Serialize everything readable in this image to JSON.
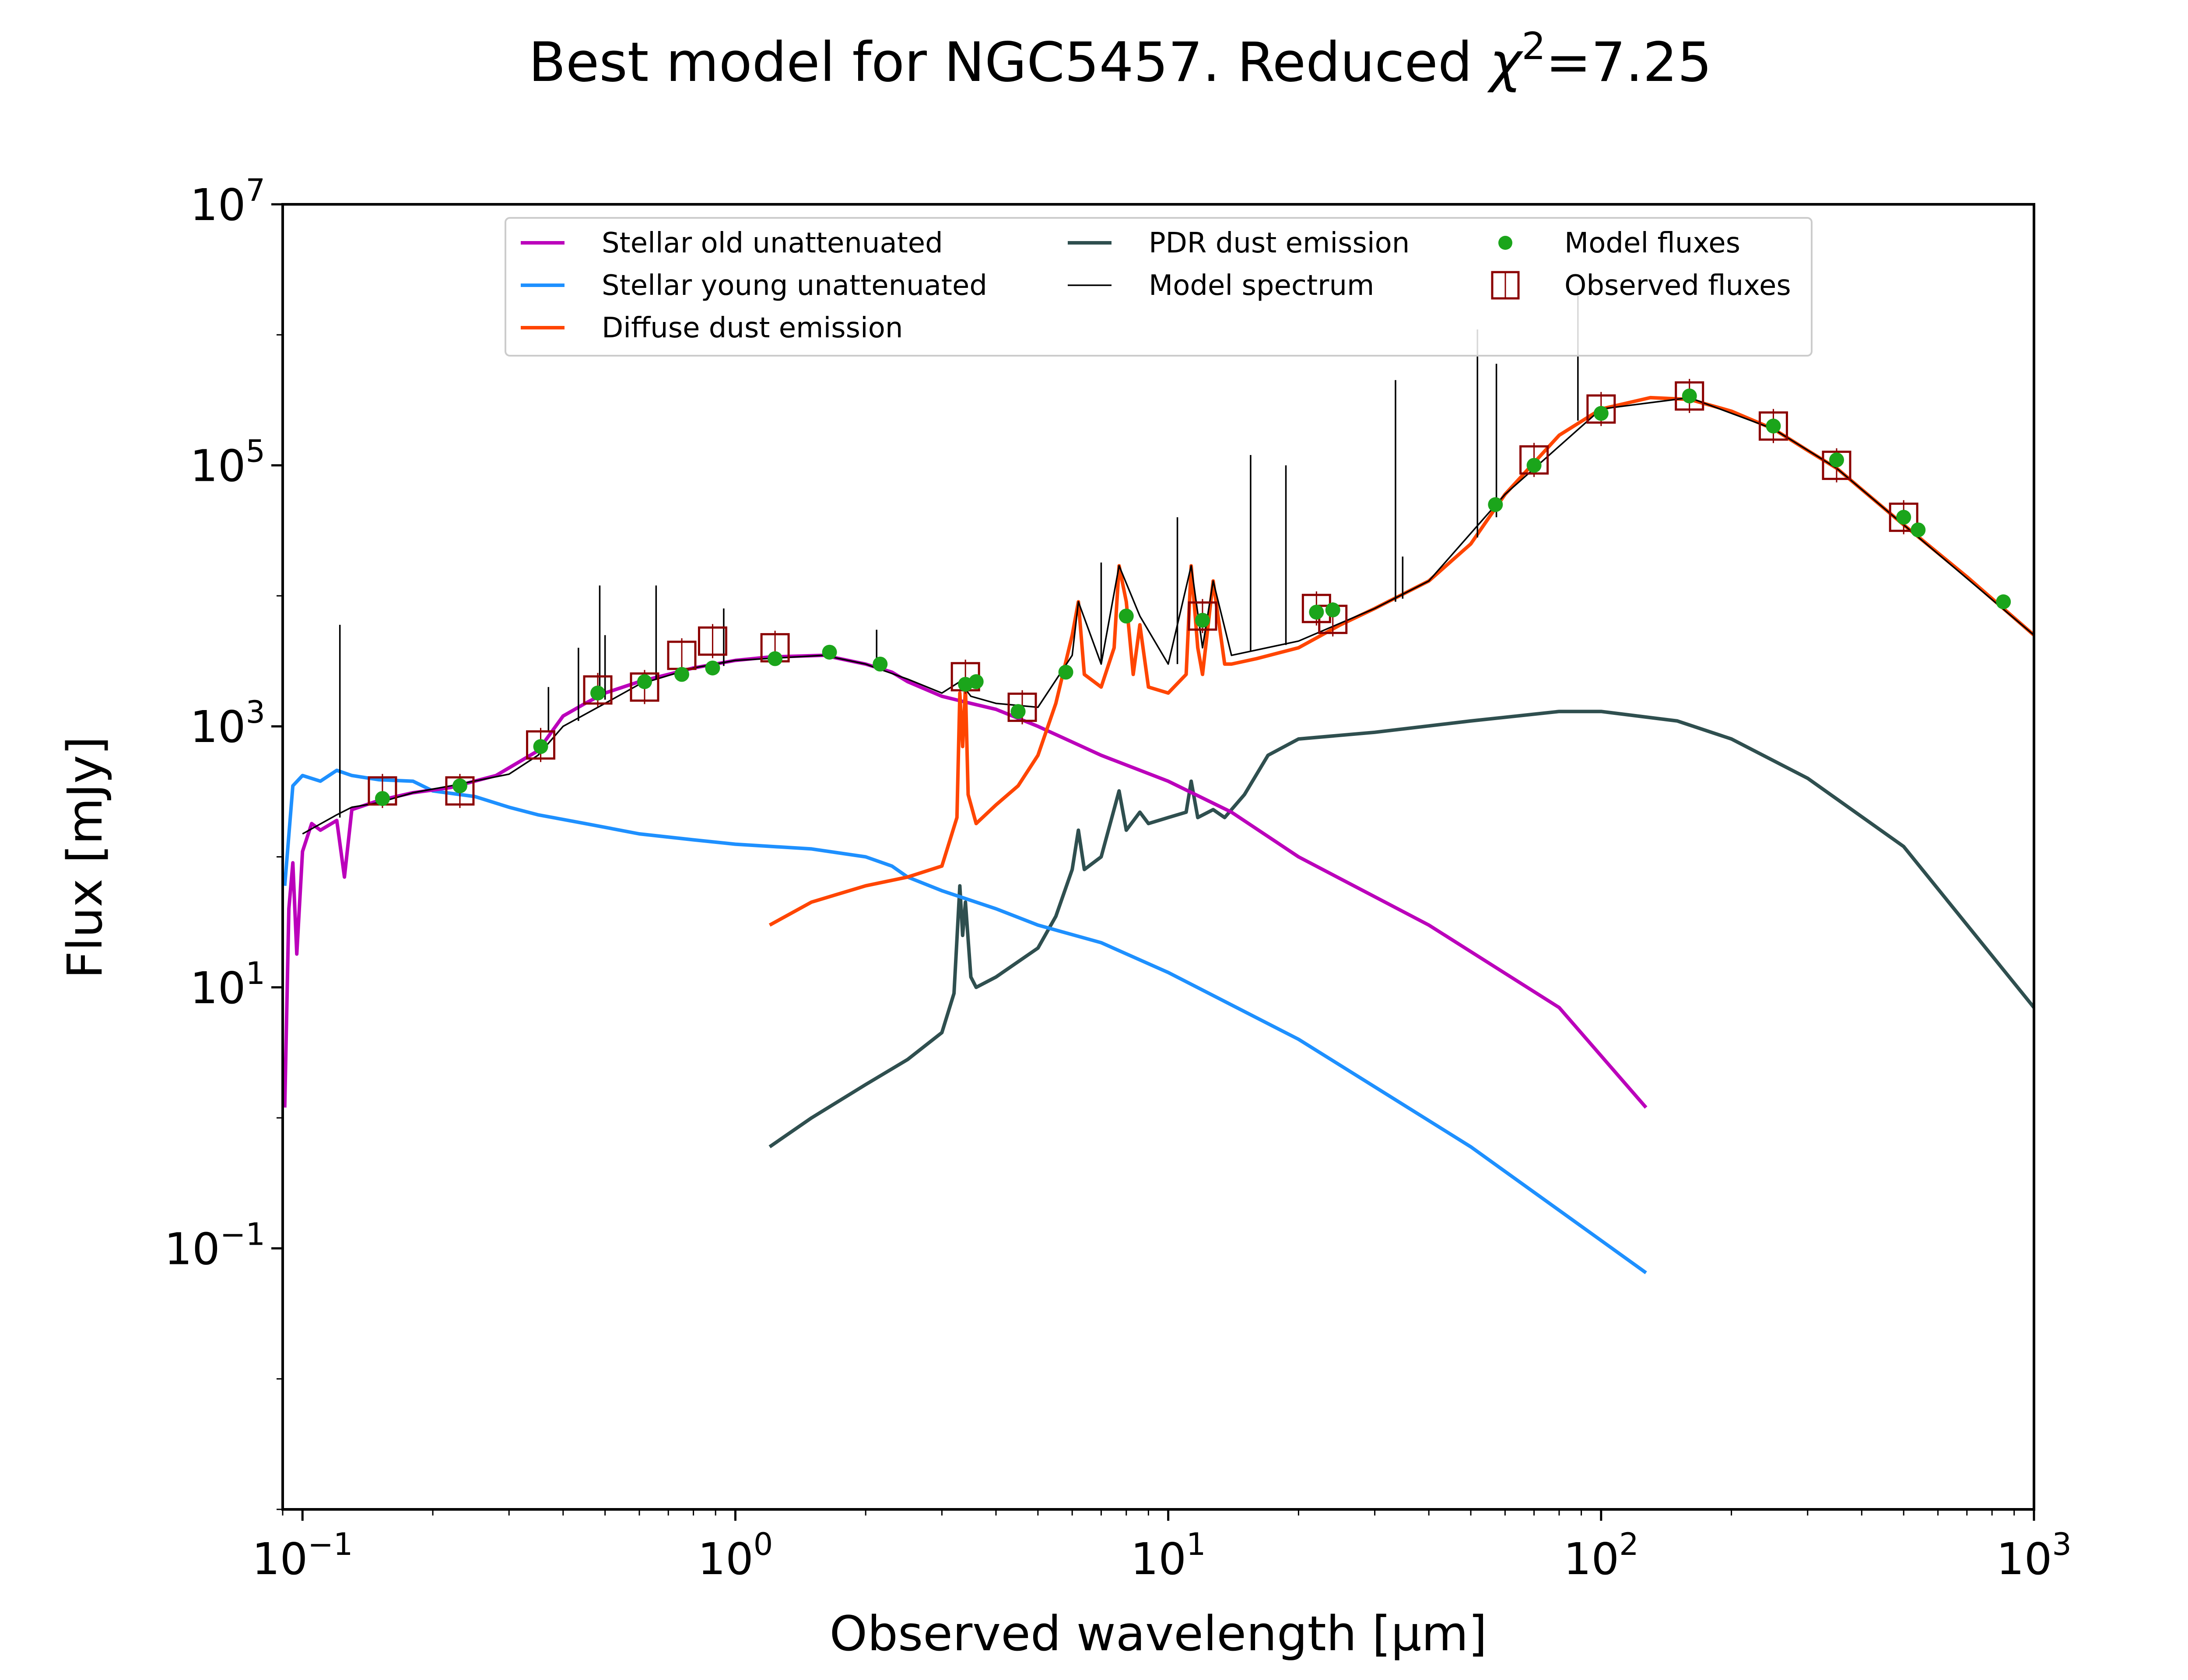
{
  "chart_data": {
    "type": "line",
    "title": "Best model for NGC5457. Reduced χ²=7.25",
    "title_parts": {
      "main": "Best model for NGC5457. Reduced ",
      "chi": "χ",
      "sup": "2",
      "tail": "=7.25"
    },
    "xlabel": "Observed wavelength [μm]",
    "ylabel": "Flux [mJy]",
    "xscale": "log",
    "yscale": "log",
    "xlim": [
      0.09,
      1000
    ],
    "ylim": [
      0.001,
      10000000
    ],
    "xticks": [
      {
        "base": "10",
        "exp": "−1",
        "value": 0.1
      },
      {
        "base": "10",
        "exp": "0",
        "value": 1
      },
      {
        "base": "10",
        "exp": "1",
        "value": 10
      },
      {
        "base": "10",
        "exp": "2",
        "value": 100
      },
      {
        "base": "10",
        "exp": "3",
        "value": 1000
      }
    ],
    "yticks": [
      {
        "base": "10",
        "exp": "−1",
        "value": 0.1
      },
      {
        "base": "10",
        "exp": "1",
        "value": 10
      },
      {
        "base": "10",
        "exp": "3",
        "value": 1000
      },
      {
        "base": "10",
        "exp": "5",
        "value": 100000
      },
      {
        "base": "10",
        "exp": "7",
        "value": 10000000
      }
    ],
    "grid": false,
    "legend_position": "top-center",
    "legend": [
      {
        "label": "Stellar old unattenuated",
        "kind": "line",
        "color": "#bb00bb"
      },
      {
        "label": "Stellar young unattenuated",
        "kind": "line",
        "color": "#1e90ff"
      },
      {
        "label": "Diffuse dust emission",
        "kind": "line",
        "color": "#ff4500"
      },
      {
        "label": "PDR dust emission",
        "kind": "line",
        "color": "#2f4f4f"
      },
      {
        "label": "Model spectrum",
        "kind": "thin-line",
        "color": "#000000"
      },
      {
        "label": "Model fluxes",
        "kind": "dot",
        "color": "#1ba51b"
      },
      {
        "label": "Observed fluxes",
        "kind": "square",
        "color": "#8b0000"
      }
    ],
    "series": [
      {
        "name": "Stellar old unattenuated",
        "color": "#bb00bb",
        "points": [
          [
            0.091,
            1.2
          ],
          [
            0.093,
            40
          ],
          [
            0.095,
            90
          ],
          [
            0.097,
            18
          ],
          [
            0.1,
            110
          ],
          [
            0.105,
            180
          ],
          [
            0.11,
            160
          ],
          [
            0.12,
            190
          ],
          [
            0.125,
            70
          ],
          [
            0.13,
            230
          ],
          [
            0.15,
            270
          ],
          [
            0.18,
            310
          ],
          [
            0.22,
            340
          ],
          [
            0.28,
            420
          ],
          [
            0.35,
            650
          ],
          [
            0.4,
            1200
          ],
          [
            0.45,
            1500
          ],
          [
            0.5,
            1800
          ],
          [
            0.6,
            2200
          ],
          [
            0.7,
            2500
          ],
          [
            0.8,
            2800
          ],
          [
            1.0,
            3200
          ],
          [
            1.2,
            3400
          ],
          [
            1.6,
            3500
          ],
          [
            2.0,
            3000
          ],
          [
            2.3,
            2600
          ],
          [
            2.5,
            2200
          ],
          [
            3.0,
            1700
          ],
          [
            3.5,
            1500
          ],
          [
            4.0,
            1350
          ],
          [
            5.0,
            1000
          ],
          [
            7.0,
            600
          ],
          [
            10.0,
            380
          ],
          [
            14.0,
            220
          ],
          [
            20.0,
            100
          ],
          [
            40.0,
            30
          ],
          [
            80.0,
            7
          ],
          [
            127,
            1.2
          ]
        ]
      },
      {
        "name": "Stellar young unattenuated",
        "color": "#1e90ff",
        "points": [
          [
            0.091,
            60
          ],
          [
            0.095,
            350
          ],
          [
            0.1,
            420
          ],
          [
            0.11,
            380
          ],
          [
            0.12,
            460
          ],
          [
            0.13,
            420
          ],
          [
            0.15,
            390
          ],
          [
            0.18,
            380
          ],
          [
            0.2,
            320
          ],
          [
            0.25,
            290
          ],
          [
            0.3,
            240
          ],
          [
            0.35,
            210
          ],
          [
            0.45,
            180
          ],
          [
            0.6,
            150
          ],
          [
            0.8,
            135
          ],
          [
            1.0,
            125
          ],
          [
            1.5,
            115
          ],
          [
            2.0,
            100
          ],
          [
            2.3,
            85
          ],
          [
            2.5,
            70
          ],
          [
            3.0,
            55
          ],
          [
            4.0,
            40
          ],
          [
            5.0,
            30
          ],
          [
            7.0,
            22
          ],
          [
            10.0,
            13
          ],
          [
            20.0,
            4
          ],
          [
            50.0,
            0.6
          ],
          [
            127,
            0.065
          ]
        ]
      },
      {
        "name": "Diffuse dust emission",
        "color": "#ff4500",
        "points": [
          [
            1.2,
            30
          ],
          [
            1.5,
            45
          ],
          [
            2.0,
            60
          ],
          [
            2.5,
            70
          ],
          [
            3.0,
            85
          ],
          [
            3.25,
            200
          ],
          [
            3.3,
            1800
          ],
          [
            3.35,
            700
          ],
          [
            3.4,
            2000
          ],
          [
            3.45,
            300
          ],
          [
            3.6,
            180
          ],
          [
            4.0,
            250
          ],
          [
            4.5,
            350
          ],
          [
            5.0,
            600
          ],
          [
            5.5,
            1500
          ],
          [
            6.0,
            5000
          ],
          [
            6.2,
            9000
          ],
          [
            6.4,
            2500
          ],
          [
            7.0,
            2000
          ],
          [
            7.5,
            4000
          ],
          [
            7.7,
            17000
          ],
          [
            8.0,
            9000
          ],
          [
            8.3,
            2500
          ],
          [
            8.6,
            6000
          ],
          [
            9.0,
            2000
          ],
          [
            10.0,
            1800
          ],
          [
            11.0,
            2500
          ],
          [
            11.3,
            17000
          ],
          [
            11.7,
            4000
          ],
          [
            12.0,
            2500
          ],
          [
            12.7,
            13000
          ],
          [
            13.5,
            3000
          ],
          [
            14.0,
            3000
          ],
          [
            16.0,
            3300
          ],
          [
            20.0,
            4000
          ],
          [
            25.0,
            6000
          ],
          [
            30.0,
            8000
          ],
          [
            40.0,
            13000
          ],
          [
            50.0,
            25000
          ],
          [
            60.0,
            60000
          ],
          [
            80.0,
            170000
          ],
          [
            100.0,
            270000
          ],
          [
            130.0,
            330000
          ],
          [
            160.0,
            320000
          ],
          [
            200.0,
            260000
          ],
          [
            250.0,
            190000
          ],
          [
            300.0,
            130000
          ],
          [
            350.0,
            95000
          ],
          [
            500.0,
            35000
          ],
          [
            700.0,
            14000
          ],
          [
            1000.0,
            5000
          ]
        ]
      },
      {
        "name": "PDR dust emission",
        "color": "#2f4f4f",
        "points": [
          [
            1.2,
            0.6
          ],
          [
            1.5,
            1.0
          ],
          [
            2.0,
            1.8
          ],
          [
            2.5,
            2.8
          ],
          [
            3.0,
            4.5
          ],
          [
            3.2,
            9
          ],
          [
            3.3,
            60
          ],
          [
            3.35,
            25
          ],
          [
            3.4,
            45
          ],
          [
            3.5,
            12
          ],
          [
            3.6,
            10
          ],
          [
            4.0,
            12
          ],
          [
            5.0,
            20
          ],
          [
            5.5,
            35
          ],
          [
            6.0,
            80
          ],
          [
            6.2,
            160
          ],
          [
            6.4,
            80
          ],
          [
            7.0,
            100
          ],
          [
            7.7,
            320
          ],
          [
            8.0,
            160
          ],
          [
            8.6,
            220
          ],
          [
            9.0,
            180
          ],
          [
            10.0,
            200
          ],
          [
            11.0,
            220
          ],
          [
            11.3,
            380
          ],
          [
            11.7,
            200
          ],
          [
            12.7,
            230
          ],
          [
            13.5,
            200
          ],
          [
            15.0,
            300
          ],
          [
            17.0,
            600
          ],
          [
            20.0,
            800
          ],
          [
            30.0,
            900
          ],
          [
            50.0,
            1100
          ],
          [
            80.0,
            1300
          ],
          [
            100.0,
            1300
          ],
          [
            150.0,
            1100
          ],
          [
            200.0,
            800
          ],
          [
            300.0,
            400
          ],
          [
            500.0,
            120
          ],
          [
            1000.0,
            7
          ]
        ]
      },
      {
        "name": "Model spectrum",
        "color": "#000000",
        "points": [
          [
            0.1,
            150
          ],
          [
            0.12,
            210
          ],
          [
            0.13,
            240
          ],
          [
            0.15,
            260
          ],
          [
            0.18,
            310
          ],
          [
            0.22,
            350
          ],
          [
            0.3,
            430
          ],
          [
            0.35,
            600
          ],
          [
            0.4,
            1000
          ],
          [
            0.5,
            1500
          ],
          [
            0.6,
            2100
          ],
          [
            0.8,
            2800
          ],
          [
            1.0,
            3200
          ],
          [
            1.6,
            3500
          ],
          [
            2.0,
            3000
          ],
          [
            2.5,
            2300
          ],
          [
            3.0,
            1800
          ],
          [
            3.3,
            2200
          ],
          [
            3.5,
            1700
          ],
          [
            4.0,
            1500
          ],
          [
            5.0,
            1400
          ],
          [
            6.0,
            3500
          ],
          [
            6.2,
            9000
          ],
          [
            7.0,
            3000
          ],
          [
            7.7,
            17000
          ],
          [
            8.6,
            7000
          ],
          [
            10.0,
            3000
          ],
          [
            11.3,
            17000
          ],
          [
            12.0,
            4000
          ],
          [
            12.7,
            13000
          ],
          [
            14.0,
            3500
          ],
          [
            20.0,
            4500
          ],
          [
            30.0,
            8000
          ],
          [
            40.0,
            13000
          ],
          [
            60.0,
            60000
          ],
          [
            100.0,
            270000
          ],
          [
            160.0,
            330000
          ],
          [
            250.0,
            190000
          ],
          [
            350.0,
            95000
          ],
          [
            500.0,
            35000
          ],
          [
            1000.0,
            5000
          ]
        ]
      }
    ],
    "lines": [
      {
        "x": 0.122,
        "y_low": 200,
        "y_high": 6000
      },
      {
        "x": 0.37,
        "y_low": 900,
        "y_high": 2000
      },
      {
        "x": 0.434,
        "y_low": 1100,
        "y_high": 4000
      },
      {
        "x": 0.486,
        "y_low": 1600,
        "y_high": 12000
      },
      {
        "x": 0.5,
        "y_low": 1600,
        "y_high": 5000
      },
      {
        "x": 0.656,
        "y_low": 2300,
        "y_high": 12000
      },
      {
        "x": 0.94,
        "y_low": 2900,
        "y_high": 8000
      },
      {
        "x": 2.12,
        "y_low": 2900,
        "y_high": 5500
      },
      {
        "x": 7.0,
        "y_low": 3000,
        "y_high": 18000
      },
      {
        "x": 10.5,
        "y_low": 3000,
        "y_high": 40000
      },
      {
        "x": 15.5,
        "y_low": 3800,
        "y_high": 120000
      },
      {
        "x": 18.7,
        "y_low": 4200,
        "y_high": 100000
      },
      {
        "x": 33.5,
        "y_low": 9000,
        "y_high": 450000
      },
      {
        "x": 34.8,
        "y_low": 9500,
        "y_high": 20000
      },
      {
        "x": 51.8,
        "y_low": 28000,
        "y_high": 1100000
      },
      {
        "x": 57.3,
        "y_low": 40000,
        "y_high": 600000
      },
      {
        "x": 88.4,
        "y_low": 220000,
        "y_high": 2000000
      }
    ],
    "model_fluxes": [
      [
        0.153,
        280
      ],
      [
        0.231,
        350
      ],
      [
        0.355,
        700
      ],
      [
        0.481,
        1800
      ],
      [
        0.617,
        2200
      ],
      [
        0.752,
        2500
      ],
      [
        0.886,
        2800
      ],
      [
        1.235,
        3300
      ],
      [
        1.65,
        3700
      ],
      [
        2.16,
        3000
      ],
      [
        3.4,
        2100
      ],
      [
        3.6,
        2200
      ],
      [
        4.5,
        1300
      ],
      [
        5.8,
        2600
      ],
      [
        8.0,
        7000
      ],
      [
        12.0,
        6500
      ],
      [
        22.0,
        7500
      ],
      [
        24.0,
        7800
      ],
      [
        57.0,
        50000
      ],
      [
        70.0,
        100000
      ],
      [
        100.0,
        250000
      ],
      [
        160.0,
        340000
      ],
      [
        250.0,
        200000
      ],
      [
        350.0,
        110000
      ],
      [
        500.0,
        40000
      ],
      [
        540.0,
        32000
      ],
      [
        850.0,
        9000
      ]
    ],
    "observed_fluxes": [
      [
        0.153,
        320
      ],
      [
        0.231,
        320
      ],
      [
        0.355,
        720
      ],
      [
        0.481,
        1900
      ],
      [
        0.617,
        2000
      ],
      [
        0.752,
        3500
      ],
      [
        0.886,
        4500
      ],
      [
        1.235,
        4000
      ],
      [
        3.4,
        2400
      ],
      [
        4.6,
        1400
      ],
      [
        12.0,
        7000
      ],
      [
        22.0,
        8000
      ],
      [
        24.0,
        6600
      ],
      [
        70.0,
        110000
      ],
      [
        100.0,
        270000
      ],
      [
        160.0,
        340000
      ],
      [
        250.0,
        200000
      ],
      [
        350.0,
        100000
      ],
      [
        500.0,
        40000
      ]
    ]
  }
}
